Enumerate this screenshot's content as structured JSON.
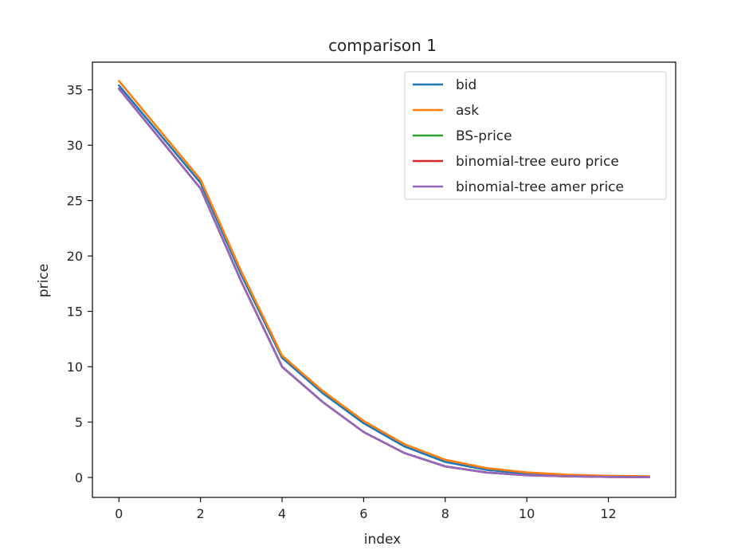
{
  "chart_data": {
    "type": "line",
    "title": "comparison 1",
    "xlabel": "index",
    "ylabel": "price",
    "xlim": [
      -0.65,
      13.65
    ],
    "ylim": [
      -1.8,
      37.5
    ],
    "xticks": [
      0,
      2,
      4,
      6,
      8,
      10,
      12
    ],
    "yticks": [
      0,
      5,
      10,
      15,
      20,
      25,
      30,
      35
    ],
    "grid": false,
    "legend_position": "top-right",
    "x": [
      0,
      2,
      3,
      4,
      5,
      6,
      7,
      8,
      9,
      10,
      11,
      12,
      13
    ],
    "series": [
      {
        "name": "bid",
        "color": "#1f77b4",
        "values": [
          35.4,
          26.6,
          18.3,
          10.8,
          7.6,
          4.9,
          2.8,
          1.4,
          0.7,
          0.35,
          0.2,
          0.1,
          0.05
        ]
      },
      {
        "name": "ask",
        "color": "#ff7f0e",
        "values": [
          35.8,
          26.9,
          18.6,
          11.0,
          7.8,
          5.1,
          3.0,
          1.6,
          0.85,
          0.45,
          0.25,
          0.15,
          0.1
        ]
      },
      {
        "name": "BS-price",
        "color": "#2ca02c",
        "values": [
          35.1,
          26.1,
          17.7,
          10.0,
          6.8,
          4.1,
          2.2,
          1.0,
          0.45,
          0.2,
          0.1,
          0.05,
          0.02
        ]
      },
      {
        "name": "binomial-tree euro price",
        "color": "#d62728",
        "values": [
          35.1,
          26.1,
          17.7,
          10.0,
          6.8,
          4.1,
          2.2,
          1.0,
          0.45,
          0.2,
          0.1,
          0.05,
          0.02
        ]
      },
      {
        "name": "binomial-tree amer price",
        "color": "#9467bd",
        "values": [
          35.1,
          26.1,
          17.7,
          10.0,
          6.8,
          4.1,
          2.2,
          1.0,
          0.45,
          0.2,
          0.1,
          0.05,
          0.02
        ]
      }
    ]
  }
}
